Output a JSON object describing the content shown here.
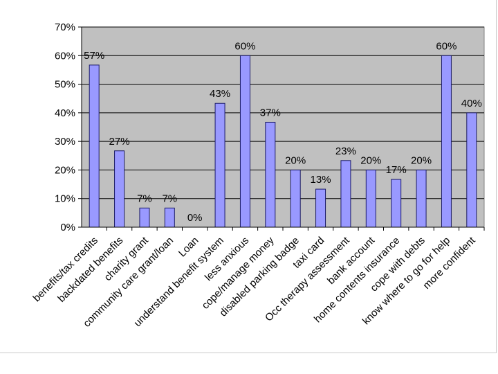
{
  "chart_data": {
    "type": "bar",
    "categories": [
      "benefits/tax credits",
      "backdated benefits",
      "charity grant",
      "community care grant/loan",
      "Loan",
      "understand benefit system",
      "less anxious",
      "cope/manage money",
      "disabled parking badge",
      "taxi card",
      "Occ therapy assessment",
      "bank account",
      "home contents insurance",
      "cope with debts",
      "know where to go for help",
      "more confident"
    ],
    "values": [
      57,
      27,
      7,
      7,
      0,
      43,
      60,
      37,
      20,
      13,
      23,
      20,
      17,
      20,
      60,
      40
    ],
    "plotted_values": [
      56.7,
      26.7,
      6.7,
      6.7,
      0,
      43.3,
      60,
      36.7,
      20,
      13.3,
      23.3,
      20,
      16.7,
      20,
      60,
      40
    ],
    "data_labels": [
      "57%",
      "27%",
      "7%",
      "7%",
      "0%",
      "43%",
      "60%",
      "37%",
      "20%",
      "13%",
      "23%",
      "20%",
      "17%",
      "20%",
      "60%",
      "40%"
    ],
    "y_ticks": [
      "0%",
      "10%",
      "20%",
      "30%",
      "40%",
      "50%",
      "60%",
      "70%"
    ],
    "ylim": [
      0,
      70
    ],
    "title": "",
    "xlabel": "",
    "ylabel": "",
    "grid": true,
    "legend": "none",
    "colors": {
      "bar_fill": "#9999ff",
      "bar_stroke": "#1a1a66",
      "plot_background": "#c0c0c0",
      "gridline": "#000000"
    }
  }
}
